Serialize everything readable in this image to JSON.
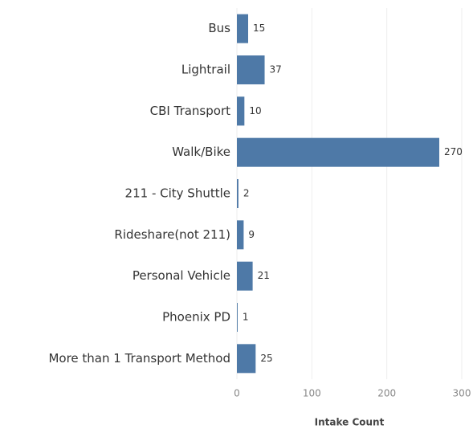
{
  "chart_data": {
    "type": "bar",
    "orientation": "horizontal",
    "categories": [
      "Bus",
      "Lightrail",
      "CBI Transport",
      "Walk/Bike",
      "211 - City Shuttle",
      "Rideshare(not 211)",
      "Personal Vehicle",
      "Phoenix PD",
      "More than 1 Transport Method"
    ],
    "values": [
      15,
      37,
      10,
      270,
      2,
      9,
      21,
      1,
      25
    ],
    "color": "#4e79a7",
    "xlabel": "Intake Count",
    "xlim": [
      0,
      300
    ],
    "xticks": [
      0,
      100,
      200,
      300
    ],
    "grid": true
  }
}
